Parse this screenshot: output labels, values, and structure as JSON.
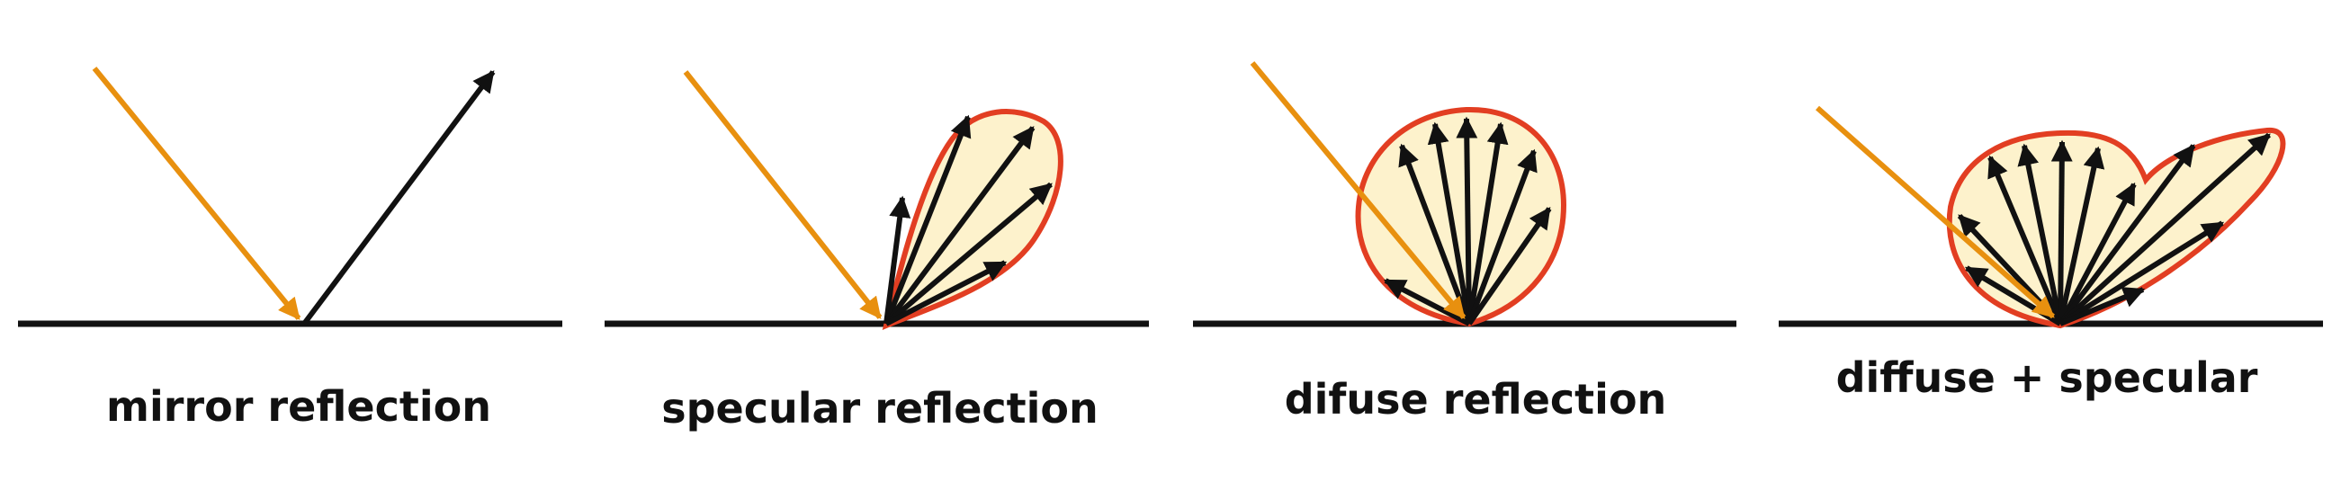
{
  "colors": {
    "incident_ray": "#e8900f",
    "reflected_ray": "#111111",
    "lobe_fill": "#fdf2cc",
    "lobe_stroke": "#e23e22",
    "surface": "#111111"
  },
  "panels": [
    {
      "id": "mirror",
      "caption": "mirror reflection"
    },
    {
      "id": "specular",
      "caption": "specular reflection"
    },
    {
      "id": "diffuse",
      "caption": "difuse reflection"
    },
    {
      "id": "combined",
      "caption": "diffuse + specular"
    }
  ]
}
